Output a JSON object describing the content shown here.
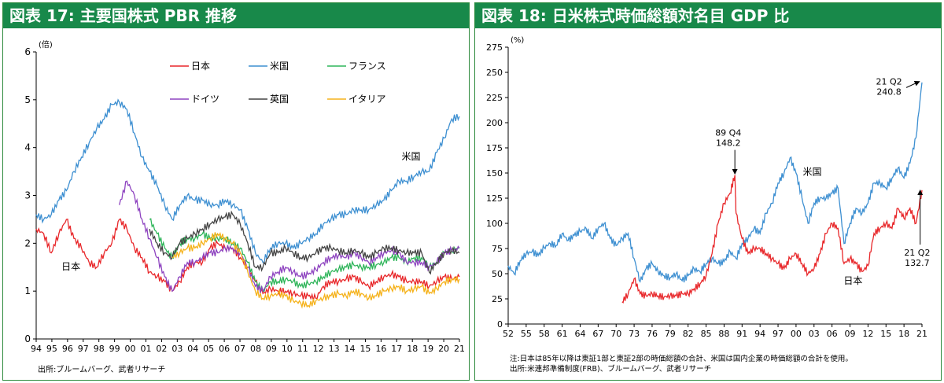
{
  "panels": [
    {
      "title": "図表 17: 主要国株式 PBR 推移",
      "source": "出所:ブルームバーグ、武者リサーチ"
    },
    {
      "title": "図表 18: 日米株式時価総額対名目 GDP 比",
      "note": "注:日本は85年以降は東証1部と東証2部の時価総額の合計、米国は国内企業の時価総額の合計を使用。",
      "source": "出所:米連邦準備制度(FRB)、ブルームバーグ、武者リサーチ"
    }
  ],
  "chart_data": [
    {
      "type": "line",
      "ylabel": "(倍)",
      "ylim": [
        0,
        6
      ],
      "yticks": [
        "0",
        "1",
        "2",
        "3",
        "4",
        "5",
        "6"
      ],
      "xticks": [
        "94",
        "95",
        "96",
        "97",
        "98",
        "99",
        "00",
        "01",
        "02",
        "03",
        "04",
        "05",
        "06",
        "07",
        "08",
        "09",
        "10",
        "11",
        "12",
        "13",
        "14",
        "15",
        "16",
        "17",
        "18",
        "19",
        "20",
        "21"
      ],
      "xlim": [
        1994,
        2022
      ],
      "grid": false,
      "legend": "top",
      "annotations": [
        {
          "text": "米国",
          "x": 2018.8,
          "y": 3.75
        },
        {
          "text": "日本",
          "x": 1996.3,
          "y": 1.45
        }
      ],
      "series": [
        {
          "name": "日本",
          "color": "#e8272a",
          "x": [
            1994,
            1994.5,
            1995,
            1995.5,
            1996,
            1996.5,
            1997,
            1997.5,
            1998,
            1998.5,
            1999,
            1999.5,
            2000,
            2000.5,
            2001,
            2001.5,
            2002,
            2002.5,
            2003,
            2003.5,
            2004,
            2004.5,
            2005,
            2005.5,
            2006,
            2006.5,
            2007,
            2007.5,
            2008,
            2008.5,
            2009,
            2009.5,
            2010,
            2010.5,
            2011,
            2011.5,
            2012,
            2012.5,
            2013,
            2013.5,
            2014,
            2014.5,
            2015,
            2015.5,
            2016,
            2016.5,
            2017,
            2017.5,
            2018,
            2018.5,
            2019,
            2019.5,
            2020,
            2020.5,
            2021,
            2021.5,
            2022
          ],
          "y": [
            2.3,
            2.2,
            1.8,
            2.2,
            2.5,
            2.1,
            1.9,
            1.6,
            1.5,
            1.8,
            2.0,
            2.5,
            2.3,
            1.9,
            1.7,
            1.4,
            1.3,
            1.2,
            1.0,
            1.2,
            1.5,
            1.6,
            1.6,
            1.9,
            2.0,
            1.9,
            1.9,
            1.7,
            1.5,
            1.2,
            0.95,
            1.05,
            1.0,
            1.0,
            0.95,
            0.9,
            0.9,
            0.85,
            1.1,
            1.2,
            1.2,
            1.25,
            1.3,
            1.2,
            1.1,
            1.2,
            1.3,
            1.35,
            1.3,
            1.2,
            1.2,
            1.2,
            1.1,
            1.2,
            1.3,
            1.25,
            1.3
          ]
        },
        {
          "name": "米国",
          "color": "#3d8fd1",
          "x": [
            1994,
            1994.5,
            1995,
            1995.5,
            1996,
            1996.5,
            1997,
            1997.5,
            1998,
            1998.5,
            1999,
            1999.5,
            2000,
            2000.5,
            2001,
            2001.5,
            2002,
            2002.5,
            2003,
            2003.5,
            2004,
            2004.5,
            2005,
            2005.5,
            2006,
            2006.5,
            2007,
            2007.5,
            2008,
            2008.5,
            2009,
            2009.5,
            2010,
            2010.5,
            2011,
            2011.5,
            2012,
            2012.5,
            2013,
            2013.5,
            2014,
            2014.5,
            2015,
            2015.5,
            2016,
            2016.5,
            2017,
            2017.5,
            2018,
            2018.5,
            2019,
            2019.5,
            2020,
            2020.5,
            2021,
            2021.5,
            2022
          ],
          "y": [
            2.6,
            2.5,
            2.6,
            2.9,
            3.1,
            3.5,
            3.8,
            4.1,
            4.4,
            4.6,
            4.9,
            4.95,
            4.8,
            4.3,
            3.8,
            3.5,
            3.2,
            2.8,
            2.5,
            2.8,
            3.0,
            2.9,
            2.9,
            2.8,
            2.8,
            2.9,
            2.8,
            2.7,
            2.3,
            1.8,
            1.6,
            1.9,
            2.0,
            2.0,
            1.9,
            2.0,
            2.1,
            2.2,
            2.4,
            2.5,
            2.6,
            2.6,
            2.7,
            2.7,
            2.7,
            2.8,
            2.9,
            3.1,
            3.3,
            3.3,
            3.4,
            3.5,
            3.5,
            3.9,
            4.2,
            4.6,
            4.65
          ]
        },
        {
          "name": "フランス",
          "color": "#2fb55a",
          "x": [
            2001.5,
            2002,
            2002.5,
            2003,
            2003.5,
            2004,
            2004.5,
            2005,
            2005.5,
            2006,
            2006.5,
            2007,
            2007.5,
            2008,
            2008.5,
            2009,
            2009.5,
            2010,
            2010.5,
            2011,
            2011.5,
            2012,
            2012.5,
            2013,
            2013.5,
            2014,
            2014.5,
            2015,
            2015.5,
            2016,
            2016.5,
            2017,
            2017.5,
            2018,
            2018.5,
            2019,
            2019.5,
            2020,
            2020.5,
            2021,
            2021.5,
            2022
          ],
          "y": [
            2.5,
            2.2,
            1.9,
            1.7,
            2.0,
            2.1,
            2.1,
            2.2,
            2.1,
            2.1,
            2.1,
            2.0,
            1.9,
            1.6,
            1.2,
            1.0,
            1.2,
            1.2,
            1.25,
            1.2,
            1.1,
            1.15,
            1.2,
            1.3,
            1.4,
            1.45,
            1.5,
            1.55,
            1.5,
            1.5,
            1.55,
            1.6,
            1.7,
            1.7,
            1.6,
            1.7,
            1.7,
            1.5,
            1.6,
            1.8,
            1.85,
            1.9
          ]
        },
        {
          "name": "ドイツ",
          "color": "#8e44c0",
          "x": [
            1999.5,
            2000,
            2000.5,
            2001,
            2001.5,
            2002,
            2002.5,
            2003,
            2003.5,
            2004,
            2004.5,
            2005,
            2005.5,
            2006,
            2006.5,
            2007,
            2007.5,
            2008,
            2008.5,
            2009,
            2009.5,
            2010,
            2010.5,
            2011,
            2011.5,
            2012,
            2012.5,
            2013,
            2013.5,
            2014,
            2014.5,
            2015,
            2015.5,
            2016,
            2016.5,
            2017,
            2017.5,
            2018,
            2018.5,
            2019,
            2019.5,
            2020,
            2020.5,
            2021,
            2021.5,
            2022
          ],
          "y": [
            2.8,
            3.3,
            3.0,
            2.5,
            2.1,
            1.7,
            1.3,
            1.0,
            1.3,
            1.6,
            1.6,
            1.7,
            1.8,
            1.8,
            1.9,
            1.9,
            1.8,
            1.5,
            1.1,
            1.0,
            1.3,
            1.4,
            1.5,
            1.4,
            1.3,
            1.35,
            1.45,
            1.6,
            1.7,
            1.75,
            1.7,
            1.8,
            1.7,
            1.6,
            1.7,
            1.8,
            1.85,
            1.8,
            1.6,
            1.6,
            1.6,
            1.5,
            1.6,
            1.8,
            1.85,
            1.9
          ]
        },
        {
          "name": "英国",
          "color": "#444444",
          "x": [
            2001.5,
            2002,
            2002.5,
            2003,
            2003.5,
            2004,
            2004.5,
            2005,
            2005.5,
            2006,
            2006.5,
            2007,
            2007.5,
            2008,
            2008.5,
            2009,
            2009.5,
            2010,
            2010.5,
            2011,
            2011.5,
            2012,
            2012.5,
            2013,
            2013.5,
            2014,
            2014.5,
            2015,
            2015.5,
            2016,
            2016.5,
            2017,
            2017.5,
            2018,
            2018.5,
            2019,
            2019.5,
            2020,
            2020.5,
            2021,
            2021.5,
            2022
          ],
          "y": [
            2.3,
            2.0,
            1.8,
            1.7,
            2.0,
            2.1,
            2.2,
            2.3,
            2.4,
            2.5,
            2.55,
            2.6,
            2.4,
            2.0,
            1.5,
            1.5,
            1.8,
            1.8,
            1.9,
            1.8,
            1.7,
            1.7,
            1.8,
            1.9,
            1.9,
            1.85,
            1.8,
            1.85,
            1.8,
            1.7,
            1.8,
            1.9,
            1.9,
            1.85,
            1.8,
            1.8,
            1.8,
            1.4,
            1.6,
            1.8,
            1.85,
            1.8
          ]
        },
        {
          "name": "イタリア",
          "color": "#f5b21b",
          "x": [
            2003,
            2003.5,
            2004,
            2004.5,
            2005,
            2005.5,
            2006,
            2006.5,
            2007,
            2007.5,
            2008,
            2008.5,
            2009,
            2009.5,
            2010,
            2010.5,
            2011,
            2011.5,
            2012,
            2012.5,
            2013,
            2013.5,
            2014,
            2014.5,
            2015,
            2015.5,
            2016,
            2016.5,
            2017,
            2017.5,
            2018,
            2018.5,
            2019,
            2019.5,
            2020,
            2020.5,
            2021,
            2021.5,
            2022
          ],
          "y": [
            1.7,
            1.8,
            1.9,
            1.9,
            2.0,
            2.1,
            2.2,
            2.1,
            2.0,
            1.8,
            1.4,
            1.0,
            0.85,
            0.9,
            0.95,
            0.9,
            0.8,
            0.75,
            0.7,
            0.8,
            0.85,
            0.9,
            0.95,
            0.9,
            1.0,
            0.95,
            0.85,
            0.9,
            1.0,
            1.05,
            1.1,
            1.0,
            1.05,
            1.1,
            0.95,
            1.05,
            1.2,
            1.25,
            1.25
          ]
        }
      ]
    },
    {
      "type": "line",
      "ylabel": "(%)",
      "ylim": [
        0,
        275
      ],
      "yticks": [
        "0",
        "25",
        "50",
        "75",
        "100",
        "125",
        "150",
        "175",
        "200",
        "225",
        "250",
        "275"
      ],
      "xticks": [
        "52",
        "55",
        "58",
        "61",
        "64",
        "67",
        "70",
        "73",
        "76",
        "79",
        "82",
        "85",
        "88",
        "91",
        "94",
        "97",
        "00",
        "03",
        "06",
        "09",
        "12",
        "15",
        "18",
        "21"
      ],
      "xlim": [
        1952,
        2021
      ],
      "grid": false,
      "annotations": [
        {
          "text": "89 Q4",
          "text2": "148.2",
          "x": 1988.7,
          "y": 187,
          "arrow_x": 1989.8,
          "arrow_y": 149
        },
        {
          "text": "21 Q2",
          "text2": "240.8",
          "x": 2015.5,
          "y": 238,
          "arrow_x": 2020.6,
          "arrow_y": 241
        },
        {
          "text": "21 Q2",
          "text2": "132.7",
          "x": 2020.2,
          "y": 68,
          "arrow_x": 2020.7,
          "arrow_y": 133
        },
        {
          "text": "米国",
          "x": 2002.7,
          "y": 148
        },
        {
          "text": "日本",
          "x": 2009.5,
          "y": 40
        }
      ],
      "series": [
        {
          "name": "米国",
          "color": "#3d8fd1",
          "x": [
            1952,
            1953,
            1954,
            1955,
            1956,
            1957,
            1958,
            1959,
            1960,
            1961,
            1962,
            1963,
            1964,
            1965,
            1966,
            1967,
            1968,
            1969,
            1970,
            1971,
            1972,
            1973,
            1974,
            1975,
            1976,
            1977,
            1978,
            1979,
            1980,
            1981,
            1982,
            1983,
            1984,
            1985,
            1986,
            1987,
            1988,
            1989,
            1990,
            1991,
            1992,
            1993,
            1994,
            1995,
            1996,
            1997,
            1998,
            1999,
            2000,
            2001,
            2002,
            2003,
            2004,
            2005,
            2006,
            2007,
            2008,
            2009,
            2010,
            2011,
            2012,
            2013,
            2014,
            2015,
            2016,
            2017,
            2018,
            2019,
            2020,
            2021
          ],
          "y": [
            58,
            50,
            63,
            70,
            72,
            68,
            76,
            80,
            78,
            90,
            83,
            88,
            92,
            95,
            85,
            95,
            100,
            85,
            78,
            85,
            90,
            65,
            42,
            55,
            60,
            52,
            48,
            46,
            50,
            43,
            48,
            55,
            52,
            60,
            65,
            60,
            62,
            72,
            65,
            80,
            85,
            95,
            90,
            110,
            120,
            140,
            150,
            165,
            150,
            125,
            100,
            120,
            125,
            125,
            130,
            135,
            80,
            100,
            115,
            110,
            120,
            140,
            140,
            135,
            145,
            155,
            145,
            160,
            185,
            240
          ]
        },
        {
          "name": "日本",
          "color": "#e8272a",
          "x": [
            1971,
            1972,
            1973,
            1974,
            1975,
            1976,
            1977,
            1978,
            1979,
            1980,
            1981,
            1982,
            1983,
            1984,
            1985,
            1986,
            1987,
            1988,
            1989,
            1989.8,
            1990,
            1991,
            1992,
            1993,
            1994,
            1995,
            1996,
            1997,
            1998,
            1999,
            2000,
            2001,
            2002,
            2003,
            2004,
            2005,
            2006,
            2007,
            2008,
            2009,
            2010,
            2011,
            2012,
            2013,
            2014,
            2015,
            2016,
            2017,
            2018,
            2019,
            2020,
            2021
          ],
          "y": [
            22,
            30,
            45,
            30,
            28,
            30,
            28,
            27,
            28,
            28,
            30,
            30,
            35,
            40,
            48,
            70,
            100,
            120,
            130,
            148,
            110,
            85,
            70,
            75,
            75,
            70,
            65,
            60,
            55,
            65,
            70,
            60,
            50,
            55,
            70,
            90,
            100,
            95,
            60,
            65,
            60,
            52,
            58,
            90,
            95,
            100,
            95,
            115,
            105,
            115,
            100,
            133
          ]
        }
      ]
    }
  ]
}
